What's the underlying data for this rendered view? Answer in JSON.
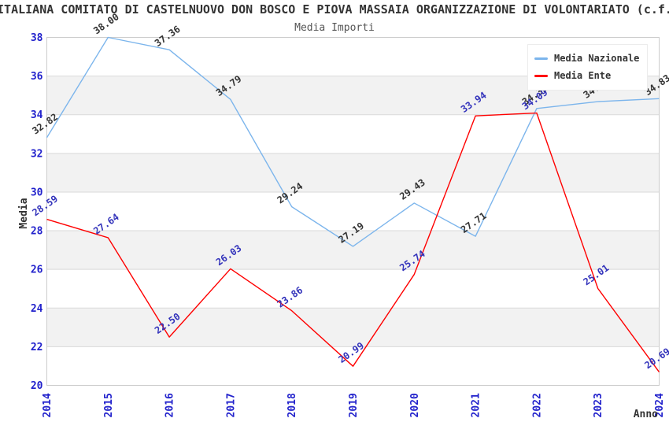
{
  "header": {
    "title": "ITALIANA COMITATO DI CASTELNUOVO DON BOSCO E PIOVA MASSAIA ORGANIZZAZIONE DI VOLONTARIATO (c.f.",
    "subtitle": "Media Importi"
  },
  "legend": {
    "items": [
      {
        "label": "Media Nazionale",
        "color": "#7cb5ec"
      },
      {
        "label": "Media Ente",
        "color": "#ff0000"
      }
    ]
  },
  "chart_data": {
    "type": "line",
    "x": [
      2014,
      2015,
      2016,
      2017,
      2018,
      2019,
      2020,
      2021,
      2022,
      2023,
      2024
    ],
    "series": [
      {
        "name": "Media Nazionale",
        "color": "#7cb5ec",
        "label_color": "#333333",
        "values": [
          32.82,
          38.0,
          37.36,
          34.79,
          29.24,
          27.19,
          29.43,
          27.71,
          34.32,
          34.68,
          34.83
        ]
      },
      {
        "name": "Media Ente",
        "color": "#ff0000",
        "label_color": "#3333bb",
        "values": [
          28.59,
          27.64,
          22.5,
          26.03,
          23.86,
          20.99,
          25.74,
          33.94,
          34.09,
          25.01,
          20.69
        ]
      }
    ],
    "title": "Media Importi",
    "xlabel": "Anno",
    "ylabel": "Media",
    "ylim": [
      20,
      38
    ],
    "ytick_step": 2,
    "grid": true,
    "legend_position": "top-right",
    "tick_label_color": "#2222cc",
    "axis_title_color": "#333333",
    "gridline_color": "#d9d9d9",
    "border_color": "#cccccc",
    "band_fill": "#f2f2f2"
  }
}
